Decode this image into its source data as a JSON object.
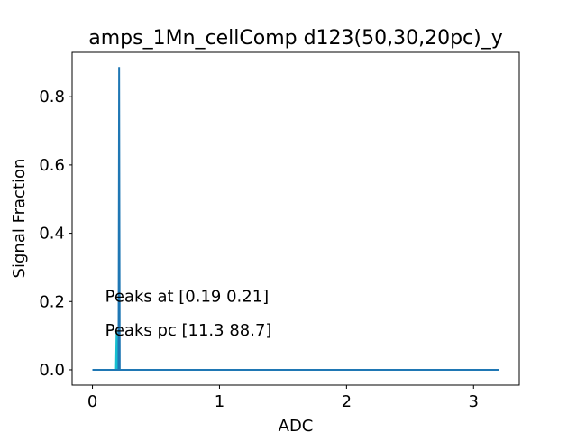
{
  "chart_data": {
    "type": "line",
    "title": "amps_1Mn_cellComp d123(50,30,20pc)_y",
    "xlabel": "ADC",
    "ylabel": "Signal Fraction",
    "xlim": [
      -0.16,
      3.36
    ],
    "ylim": [
      -0.045,
      0.93
    ],
    "xticks": [
      0,
      1,
      2,
      3
    ],
    "xtick_labels": [
      "0",
      "1",
      "2",
      "3"
    ],
    "yticks": [
      0.0,
      0.2,
      0.4,
      0.6,
      0.8
    ],
    "ytick_labels": [
      "0.0",
      "0.2",
      "0.4",
      "0.6",
      "0.8"
    ],
    "grid": false,
    "legend": "none",
    "series": [
      {
        "color": "#17becf",
        "x": [
          0.0,
          0.185,
          0.19,
          0.195,
          3.2
        ],
        "y": [
          0.0,
          0.0,
          0.113,
          0.0,
          0.0
        ]
      },
      {
        "color": "#1f77b4",
        "x": [
          0.0,
          0.205,
          0.21,
          0.215,
          3.2
        ],
        "y": [
          0.0,
          0.0,
          0.887,
          0.0,
          0.0
        ]
      }
    ],
    "annotations": [
      {
        "text": "Peaks at [0.19 0.21]",
        "x": 0.1,
        "y": 0.2
      },
      {
        "text": "Peaks pc [11.3 88.7]",
        "x": 0.1,
        "y": 0.1
      }
    ]
  }
}
